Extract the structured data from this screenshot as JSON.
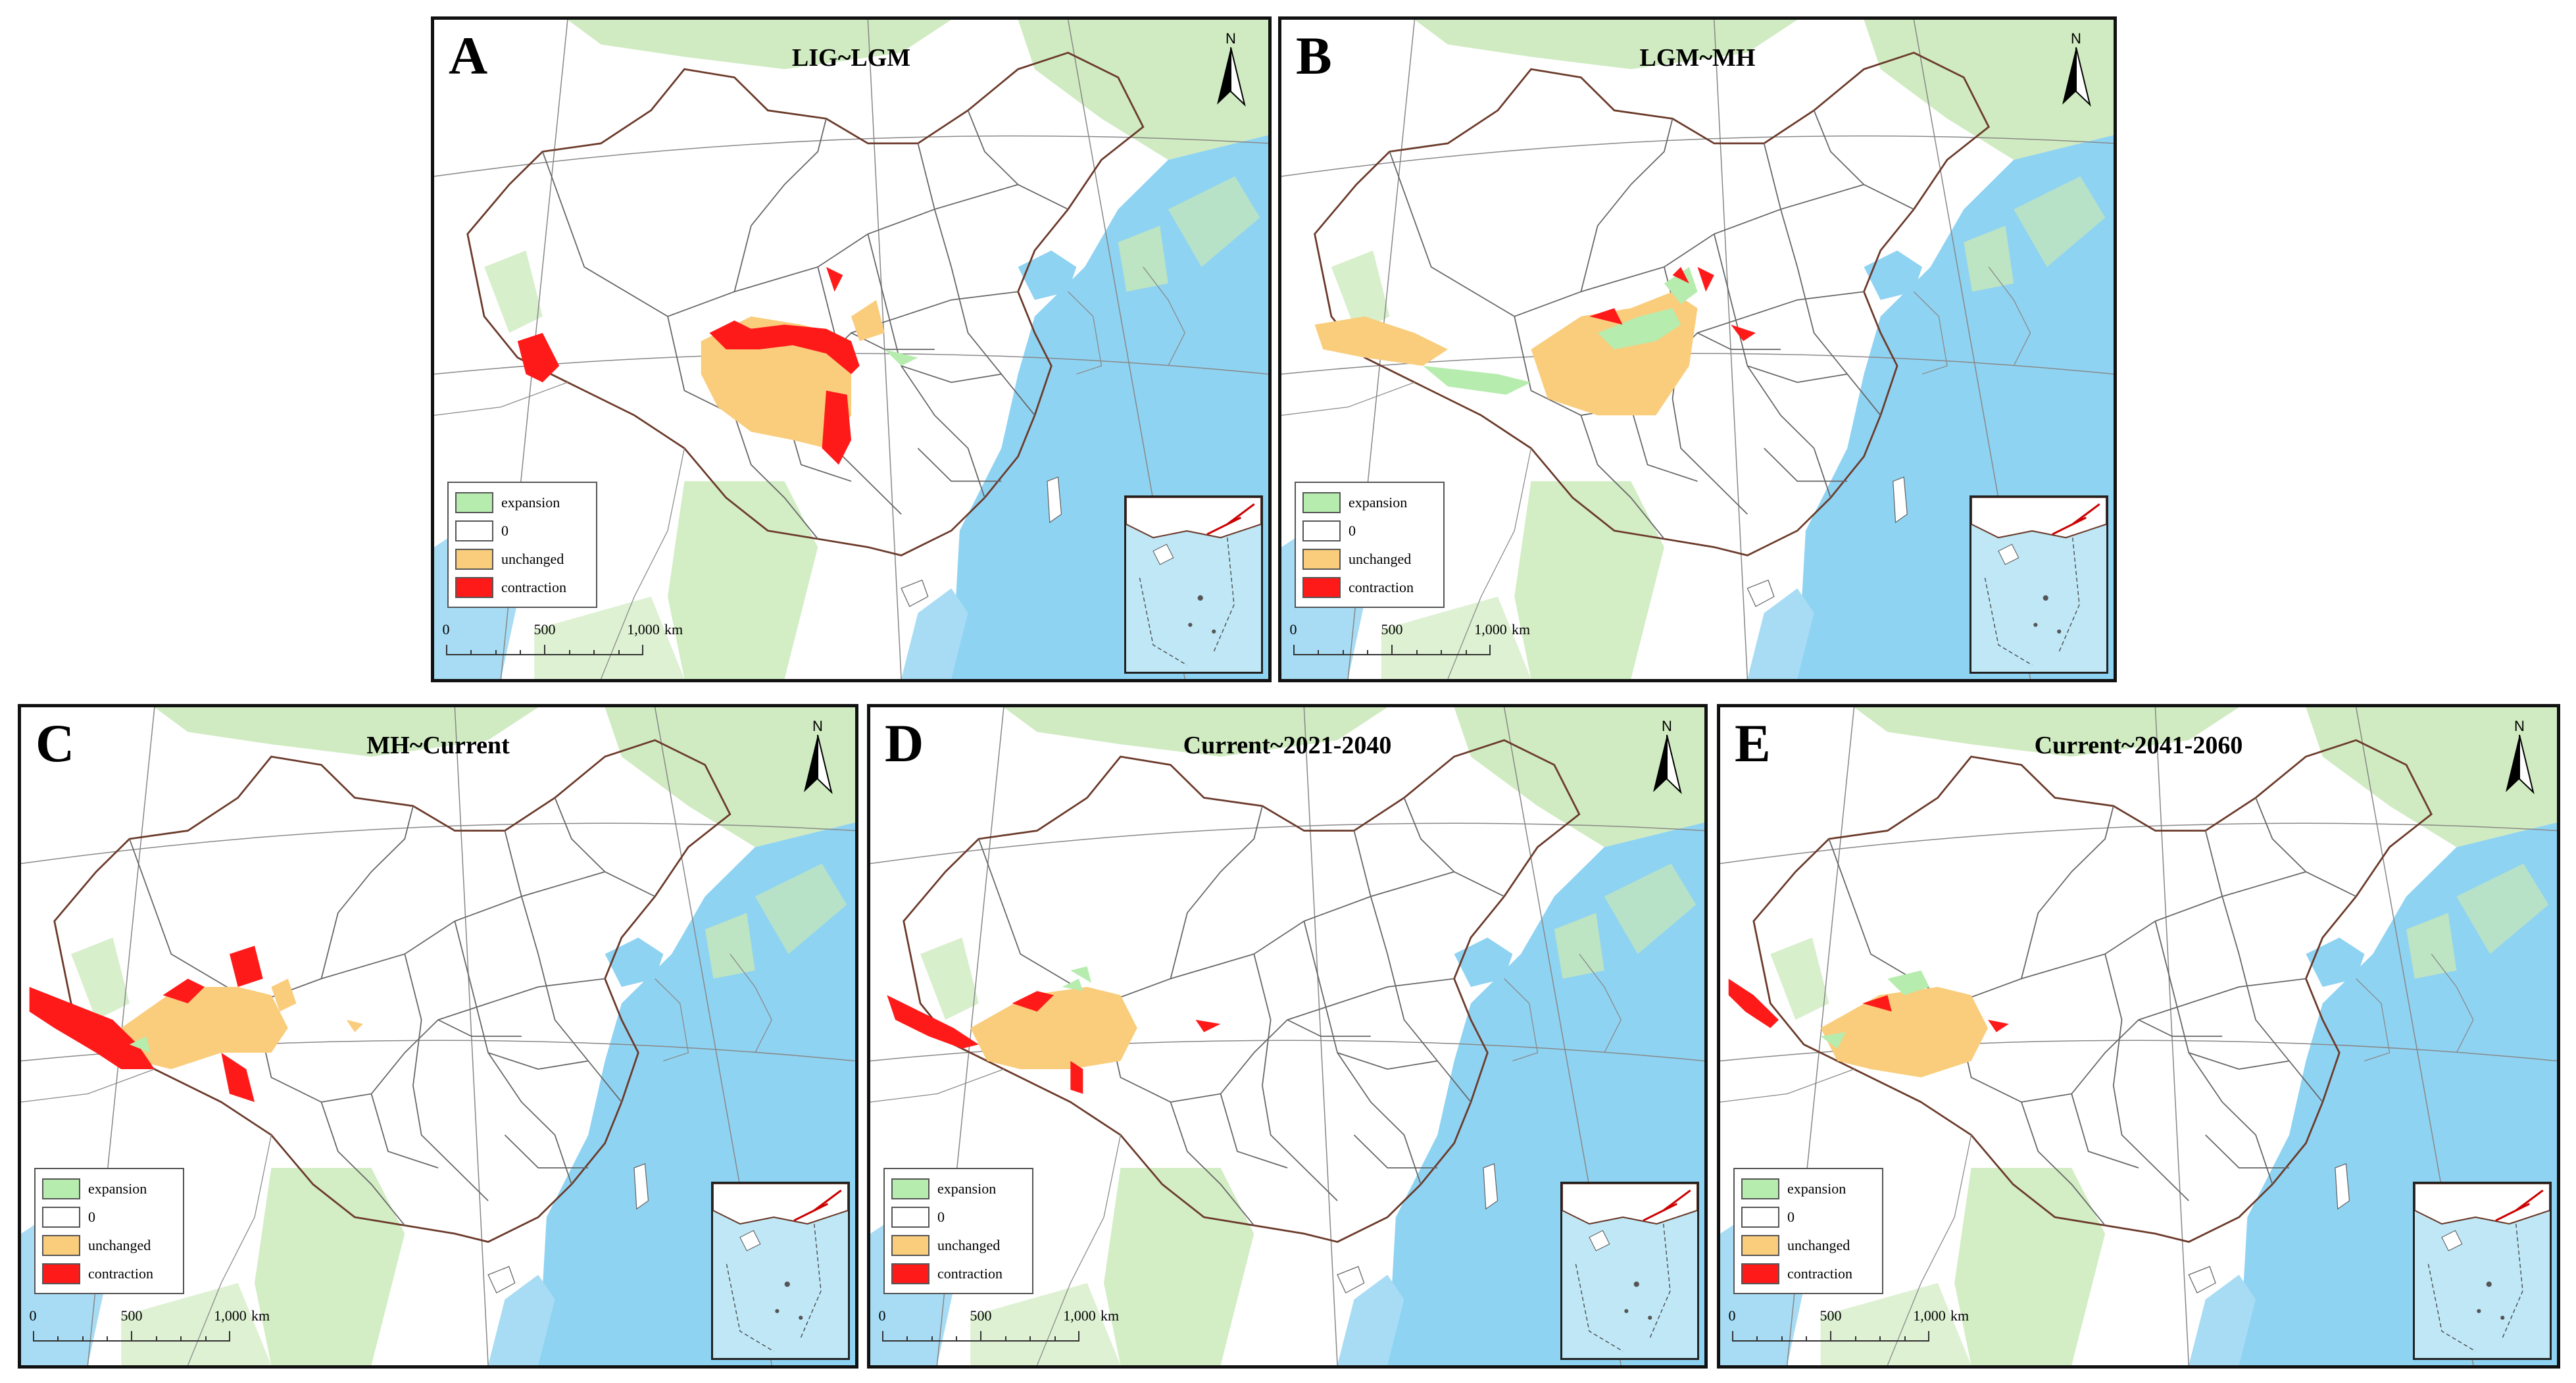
{
  "panels": [
    {
      "letter": "A",
      "title": "LIG~LGM"
    },
    {
      "letter": "B",
      "title": "LGM~MH"
    },
    {
      "letter": "C",
      "title": "MH~Current"
    },
    {
      "letter": "D",
      "title": "Current~2021-2040"
    },
    {
      "letter": "E",
      "title": "Current~2041-2060"
    }
  ],
  "legend": {
    "expansion": {
      "label": "expansion",
      "color": "#b6ecae"
    },
    "zero": {
      "label": "0",
      "color": "#ffffff"
    },
    "unchanged": {
      "label": "unchanged",
      "color": "#f9cd7c"
    },
    "contraction": {
      "label": "contraction",
      "color": "#ff1a1a"
    }
  },
  "scale_bar": {
    "zero": "0",
    "mid": "500",
    "end": "1,000",
    "unit": "km"
  },
  "north_label": "N",
  "colors": {
    "ocean": "#8fd3f2",
    "land": "#ffffff",
    "vegetation": "#c8e8b6",
    "borders": "#555555"
  }
}
